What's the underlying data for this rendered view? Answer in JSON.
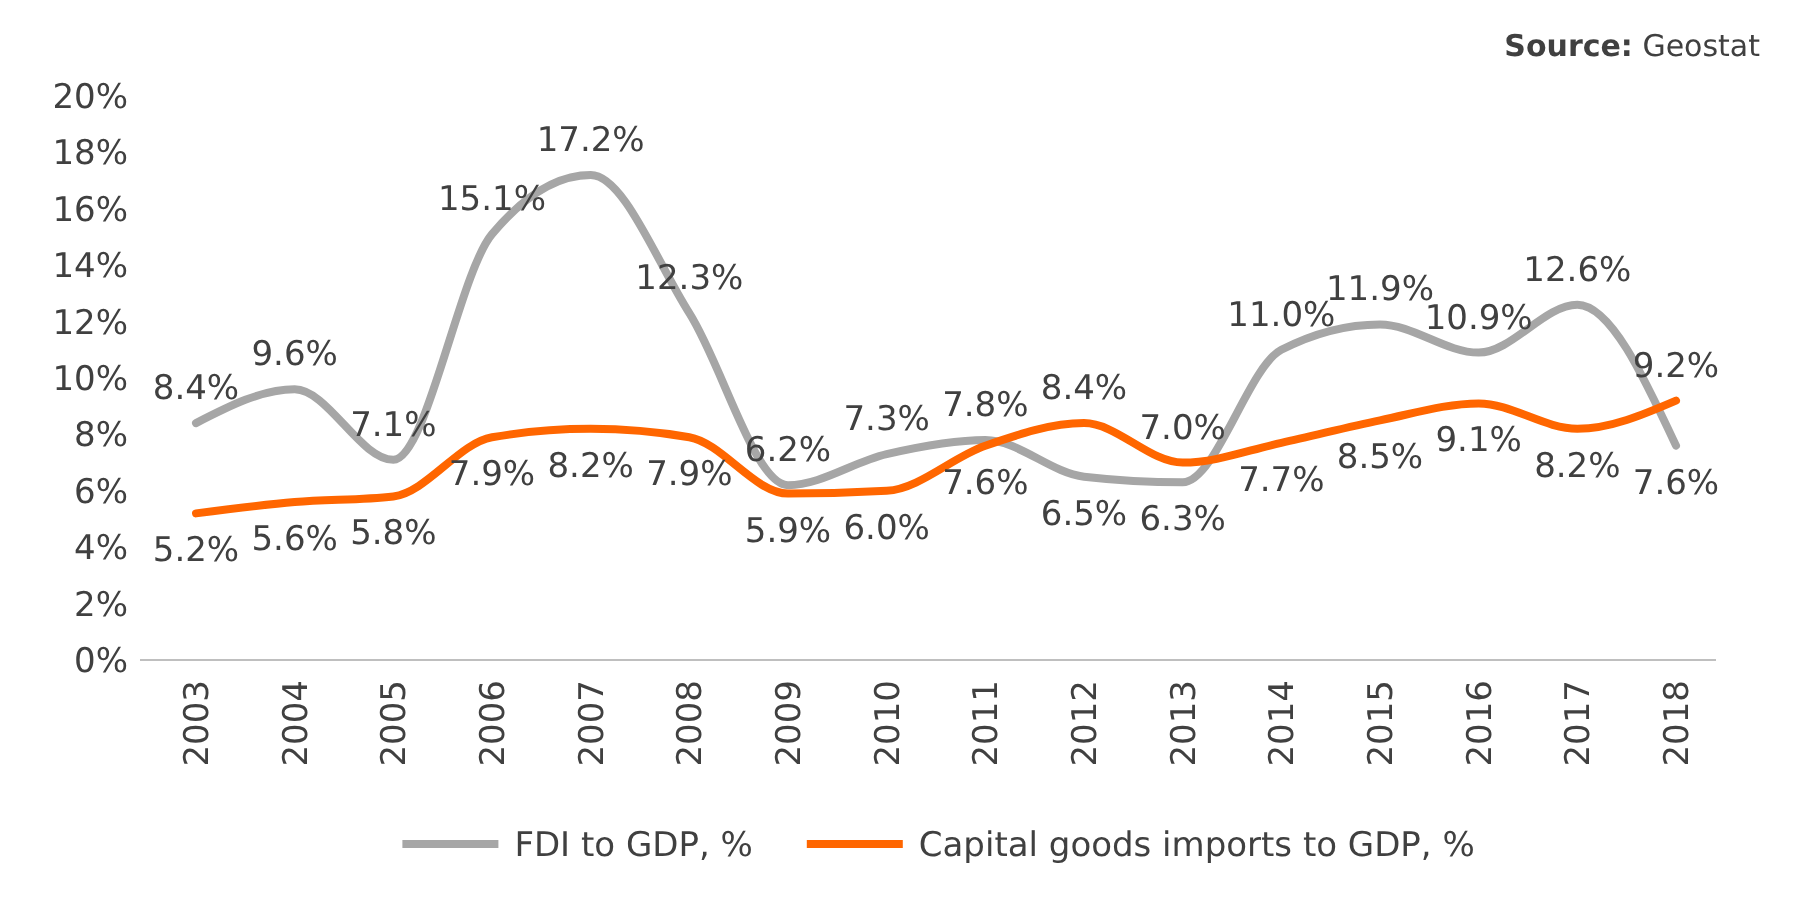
{
  "chart_data": {
    "type": "line",
    "categories": [
      "2003",
      "2004",
      "2005",
      "2006",
      "2007",
      "2008",
      "2009",
      "2010",
      "2011",
      "2012",
      "2013",
      "2014",
      "2015",
      "2016",
      "2017",
      "2018"
    ],
    "ylim": [
      0,
      20
    ],
    "yticks": [
      {
        "value": 0,
        "label": "0%"
      },
      {
        "value": 2,
        "label": "2%"
      },
      {
        "value": 4,
        "label": "4%"
      },
      {
        "value": 6,
        "label": "6%"
      },
      {
        "value": 8,
        "label": "8%"
      },
      {
        "value": 10,
        "label": "10%"
      },
      {
        "value": 12,
        "label": "12%"
      },
      {
        "value": 14,
        "label": "14%"
      },
      {
        "value": 16,
        "label": "16%"
      },
      {
        "value": 18,
        "label": "18%"
      },
      {
        "value": 20,
        "label": "20%"
      }
    ],
    "series": [
      {
        "name": "FDI to GDP, %",
        "color": "#a6a6a6",
        "values": [
          8.4,
          9.6,
          7.1,
          15.1,
          17.2,
          12.3,
          6.2,
          7.3,
          7.8,
          6.5,
          6.3,
          11.0,
          11.9,
          10.9,
          12.6,
          7.6
        ],
        "value_labels": [
          "8.4%",
          "9.6%",
          "7.1%",
          "15.1%",
          "17.2%",
          "12.3%",
          "6.2%",
          "7.3%",
          "7.8%",
          "6.5%",
          "6.3%",
          "11.0%",
          "11.9%",
          "10.9%",
          "12.6%",
          "7.6%"
        ]
      },
      {
        "name": "Capital goods imports to GDP, %",
        "color": "#ff6600",
        "values": [
          5.2,
          5.6,
          5.8,
          7.9,
          8.2,
          7.9,
          5.9,
          6.0,
          7.6,
          8.4,
          7.0,
          7.7,
          8.5,
          9.1,
          8.2,
          9.2
        ],
        "value_labels": [
          "5.2%",
          "5.6%",
          "5.8%",
          "7.9%",
          "8.2%",
          "7.9%",
          "5.9%",
          "6.0%",
          "7.6%",
          "8.4%",
          "7.0%",
          "7.7%",
          "8.5%",
          "9.1%",
          "8.2%",
          "9.2%"
        ]
      }
    ],
    "grid": false,
    "legend": "bottom",
    "line_style": "solid",
    "annotations": [
      "Source: Geostat"
    ]
  }
}
